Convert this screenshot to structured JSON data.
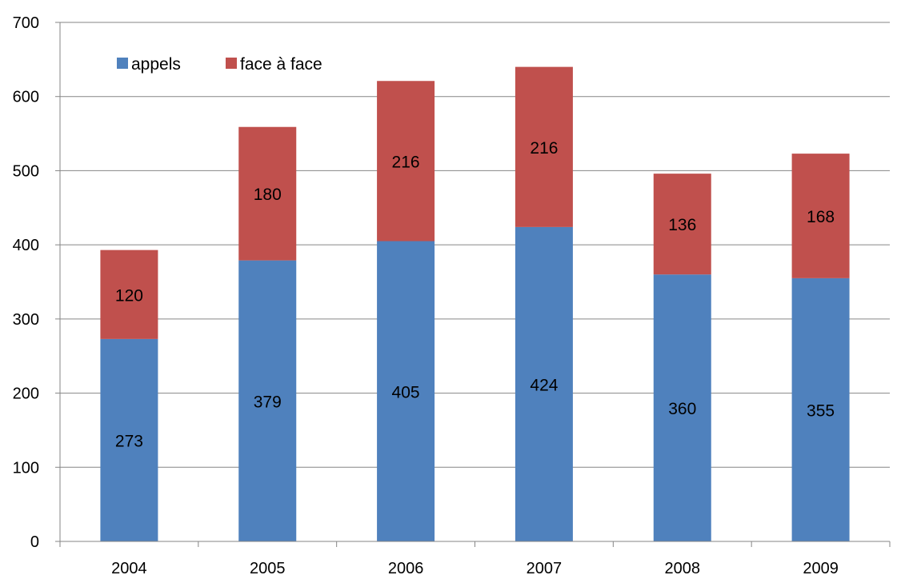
{
  "chart_data": {
    "type": "bar",
    "stacked": true,
    "categories": [
      "2004",
      "2005",
      "2006",
      "2007",
      "2008",
      "2009"
    ],
    "series": [
      {
        "name": "appels",
        "color": "#4F81BD",
        "values": [
          273,
          379,
          405,
          424,
          360,
          355
        ]
      },
      {
        "name": "face à face",
        "color": "#C0504D",
        "values": [
          120,
          180,
          216,
          216,
          136,
          168
        ]
      }
    ],
    "ylim": [
      0,
      700
    ],
    "yticks": [
      0,
      100,
      200,
      300,
      400,
      500,
      600,
      700
    ],
    "grid": true,
    "legend_position": "top-left",
    "title": "",
    "xlabel": "",
    "ylabel": ""
  }
}
